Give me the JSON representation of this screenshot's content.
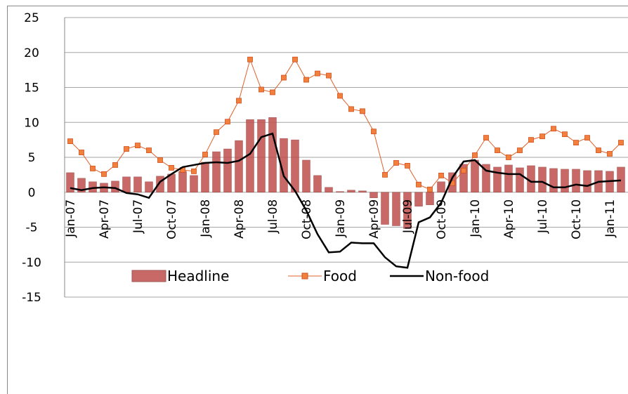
{
  "chart_data": {
    "type": "bar_line",
    "categories": [
      "Jan-07",
      null,
      null,
      "Apr-07",
      null,
      null,
      "Jul-07",
      null,
      null,
      "Oct-07",
      null,
      null,
      "Jan-08",
      null,
      null,
      "Apr-08",
      null,
      null,
      "Jul-08",
      null,
      null,
      "Oct-08",
      null,
      null,
      "Jan-09",
      null,
      null,
      "Apr-09",
      null,
      null,
      "Jul-09",
      null,
      null,
      "Oct-09",
      null,
      null,
      "Jan-10",
      null,
      null,
      "Apr-10",
      null,
      null,
      "Jul-10",
      null,
      null,
      "Oct-10",
      null,
      null,
      "Jan-11",
      null
    ],
    "series": [
      {
        "name": "Headline",
        "kind": "bar",
        "color": "#c0504d",
        "values": [
          2.8,
          2.0,
          1.5,
          1.3,
          1.6,
          2.2,
          2.2,
          1.5,
          2.3,
          2.6,
          3.0,
          2.4,
          4.3,
          5.8,
          6.2,
          7.4,
          10.4,
          10.4,
          10.7,
          7.7,
          7.5,
          4.6,
          2.4,
          0.7,
          0.1,
          0.3,
          0.2,
          -0.8,
          -4.6,
          -4.8,
          -5.2,
          -2.0,
          -1.8,
          1.5,
          2.8,
          4.0,
          4.6,
          4.0,
          3.6,
          3.9,
          3.5,
          3.8,
          3.6,
          3.4,
          3.3,
          3.3,
          3.1,
          3.1,
          3.0,
          3.6
        ]
      },
      {
        "name": "Food",
        "kind": "line-marker",
        "color": "#e0602a",
        "values": [
          7.3,
          5.7,
          3.4,
          2.6,
          3.9,
          6.2,
          6.7,
          6.0,
          4.6,
          3.5,
          3.2,
          3.0,
          5.4,
          8.6,
          10.1,
          13.1,
          19.0,
          14.7,
          14.3,
          16.4,
          19.0,
          16.1,
          17.0,
          16.7,
          13.8,
          11.9,
          11.6,
          8.7,
          2.5,
          4.2,
          3.8,
          1.1,
          0.4,
          2.4,
          1.3,
          3.1,
          5.3,
          7.8,
          6.0,
          5.0,
          6.0,
          7.5,
          8.0,
          9.1,
          8.3,
          7.1,
          7.8,
          6.0,
          5.5,
          7.1
        ]
      },
      {
        "name": "Non-food",
        "kind": "line",
        "color": "#000000",
        "values": [
          0.6,
          0.3,
          0.6,
          0.7,
          0.6,
          -0.1,
          -0.3,
          -0.8,
          1.5,
          2.6,
          3.6,
          3.9,
          4.2,
          4.3,
          4.2,
          4.5,
          5.5,
          7.9,
          8.4,
          2.3,
          0.2,
          -2.6,
          -6.0,
          -8.6,
          -8.5,
          -7.2,
          -7.3,
          -7.3,
          -9.3,
          -10.6,
          -10.8,
          -4.3,
          -3.6,
          -1.5,
          2.1,
          4.4,
          4.6,
          3.1,
          2.8,
          2.6,
          2.6,
          1.5,
          1.5,
          0.7,
          0.7,
          1.1,
          0.9,
          1.5,
          1.6,
          1.7
        ]
      }
    ],
    "ylim": [
      -15,
      25
    ],
    "yticks": [
      -15,
      -10,
      -5,
      0,
      5,
      10,
      15,
      20,
      25
    ],
    "grid": true,
    "legend": "bottom"
  }
}
